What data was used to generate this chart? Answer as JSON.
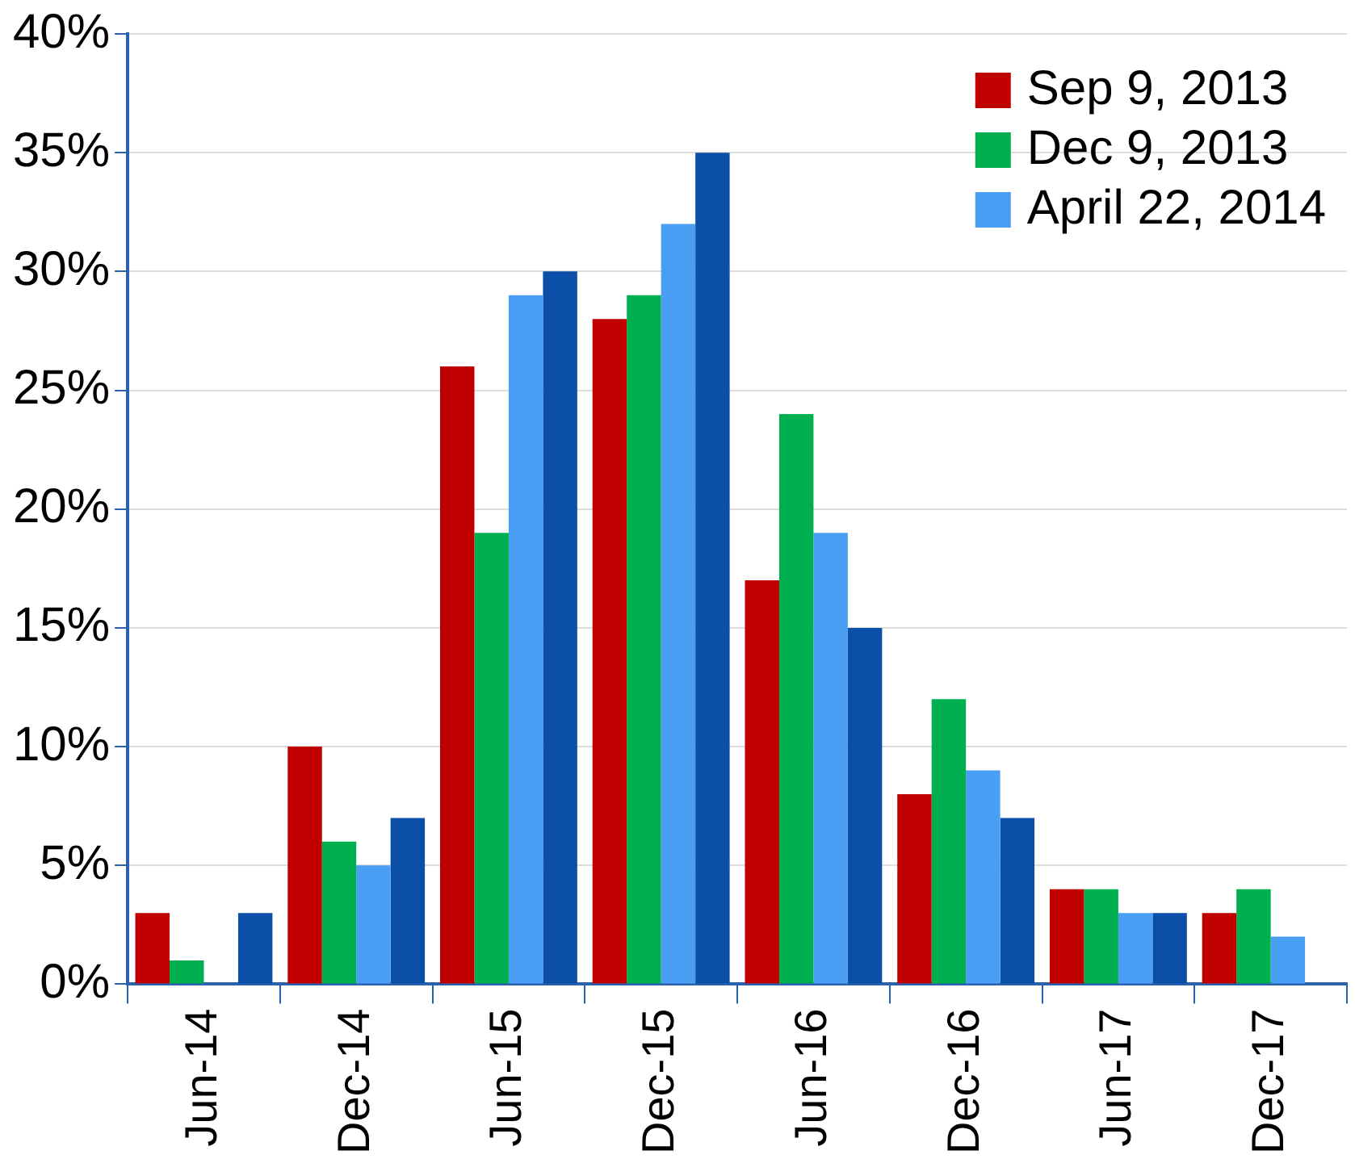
{
  "chart_data": {
    "type": "bar",
    "categories": [
      "Jun-14",
      "Dec-14",
      "Jun-15",
      "Dec-15",
      "Jun-16",
      "Dec-16",
      "Jun-17",
      "Dec-17"
    ],
    "series": [
      {
        "name": "Sep 9, 2013",
        "color": "#c00000",
        "values": [
          3,
          10,
          26,
          28,
          17,
          8,
          4,
          3
        ]
      },
      {
        "name": "Dec 9, 2013",
        "color": "#00b050",
        "values": [
          1,
          6,
          19,
          29,
          24,
          12,
          4,
          4
        ]
      },
      {
        "name": "April 22, 2014",
        "color": "#4a9ff5",
        "values": [
          0,
          5,
          29,
          32,
          19,
          9,
          3,
          2
        ]
      },
      {
        "color": "#0b4fa8",
        "values": [
          3,
          7,
          30,
          35,
          15,
          7,
          3,
          0
        ]
      }
    ],
    "ylim": [
      0,
      40
    ],
    "yticks": [
      {
        "value": 0,
        "label": "0%"
      },
      {
        "value": 5,
        "label": "5%"
      },
      {
        "value": 10,
        "label": "10%"
      },
      {
        "value": 15,
        "label": "15%"
      },
      {
        "value": 20,
        "label": "20%"
      },
      {
        "value": 25,
        "label": "25%"
      },
      {
        "value": 30,
        "label": "30%"
      },
      {
        "value": 35,
        "label": "35%"
      },
      {
        "value": 40,
        "label": "40%"
      }
    ],
    "grid": "y",
    "legend": "top right"
  }
}
